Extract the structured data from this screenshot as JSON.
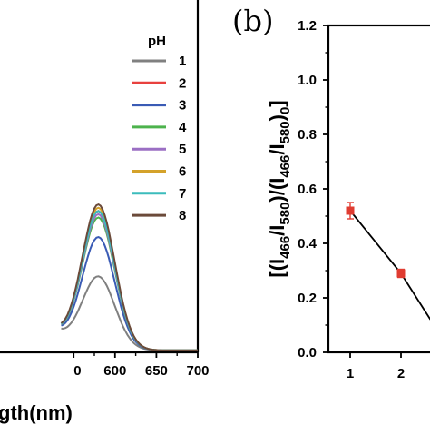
{
  "chart_data": [
    {
      "type": "line",
      "title": "",
      "xlabel": "gth(nm)",
      "ylabel": "",
      "xlim": [
        450,
        700
      ],
      "x_ticks": [
        "0",
        "600",
        "650",
        "700"
      ],
      "legend_title": "pH",
      "legend_position": "top-right",
      "grid": false,
      "series": [
        {
          "name": "1",
          "color": "#808080",
          "peak_x": 580,
          "peak_rel": 0.22
        },
        {
          "name": "2",
          "color": "#e8413e",
          "peak_x": 580,
          "peak_rel": 0.42
        },
        {
          "name": "3",
          "color": "#3a5bb5",
          "peak_x": 580,
          "peak_rel": 0.34
        },
        {
          "name": "4",
          "color": "#4db34d",
          "peak_x": 580,
          "peak_rel": 0.4
        },
        {
          "name": "5",
          "color": "#9b6fc4",
          "peak_x": 580,
          "peak_rel": 0.41
        },
        {
          "name": "6",
          "color": "#d4a22a",
          "peak_x": 580,
          "peak_rel": 0.43
        },
        {
          "name": "7",
          "color": "#3bbcbc",
          "peak_x": 580,
          "peak_rel": 0.42
        },
        {
          "name": "8",
          "color": "#6b4a3a",
          "peak_x": 580,
          "peak_rel": 0.44
        }
      ]
    },
    {
      "type": "scatter",
      "panel_label": "(b)",
      "title": "",
      "xlabel": "",
      "ylabel": "[(I466/I580)/(I466/I580)0]",
      "ylim": [
        0.0,
        1.2
      ],
      "y_ticks": [
        "0.0",
        "0.2",
        "0.4",
        "0.6",
        "0.8",
        "1.0",
        "1.2"
      ],
      "x_ticks": [
        "1",
        "2"
      ],
      "grid": false,
      "marker_color": "#e03c31",
      "points": [
        {
          "x": 1,
          "y": 0.52,
          "err": 0.03
        },
        {
          "x": 2,
          "y": 0.29,
          "err": 0.015
        }
      ],
      "fit_line": [
        [
          1,
          0.52
        ],
        [
          2,
          0.29
        ],
        [
          2.58,
          0.12
        ]
      ]
    }
  ]
}
